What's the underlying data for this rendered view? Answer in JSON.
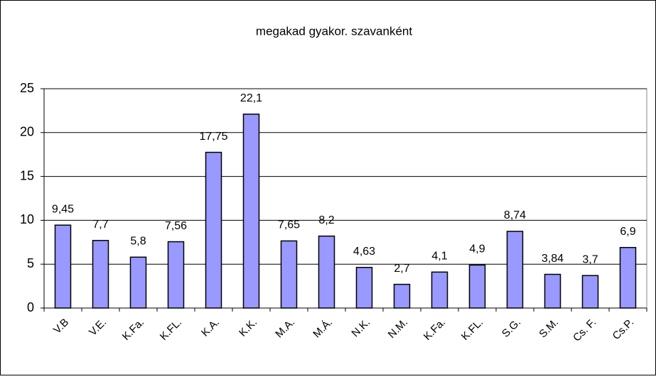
{
  "chart_data": {
    "type": "bar",
    "title": "megakad gyakor. szavanként",
    "categories": [
      "V.B",
      "V.E.",
      "K.Fa.",
      "K.FL.",
      "K.A.",
      "K.K.",
      "M.A.",
      "M.Á.",
      "N.K.",
      "N.M.",
      "K.Fa.",
      "K.FL.",
      "S.G.",
      "S.M.",
      "Cs. F.",
      "Cs.P."
    ],
    "values": [
      9.45,
      7.7,
      5.8,
      7.56,
      17.75,
      22.1,
      7.65,
      8.2,
      4.63,
      2.7,
      4.1,
      4.9,
      8.74,
      3.84,
      3.7,
      6.9
    ],
    "value_labels": [
      "9,45",
      "7,7",
      "5,8",
      "7,56",
      "17,75",
      "22,1",
      "7,65",
      "8,2",
      "4,63",
      "2,7",
      "4,1",
      "4,9",
      "8,74",
      "3,84",
      "3,7",
      "6,9"
    ],
    "color": "#9999ff",
    "ylim": [
      0,
      25
    ],
    "yticks": [
      0,
      5,
      10,
      15,
      20,
      25
    ],
    "grid": true
  }
}
